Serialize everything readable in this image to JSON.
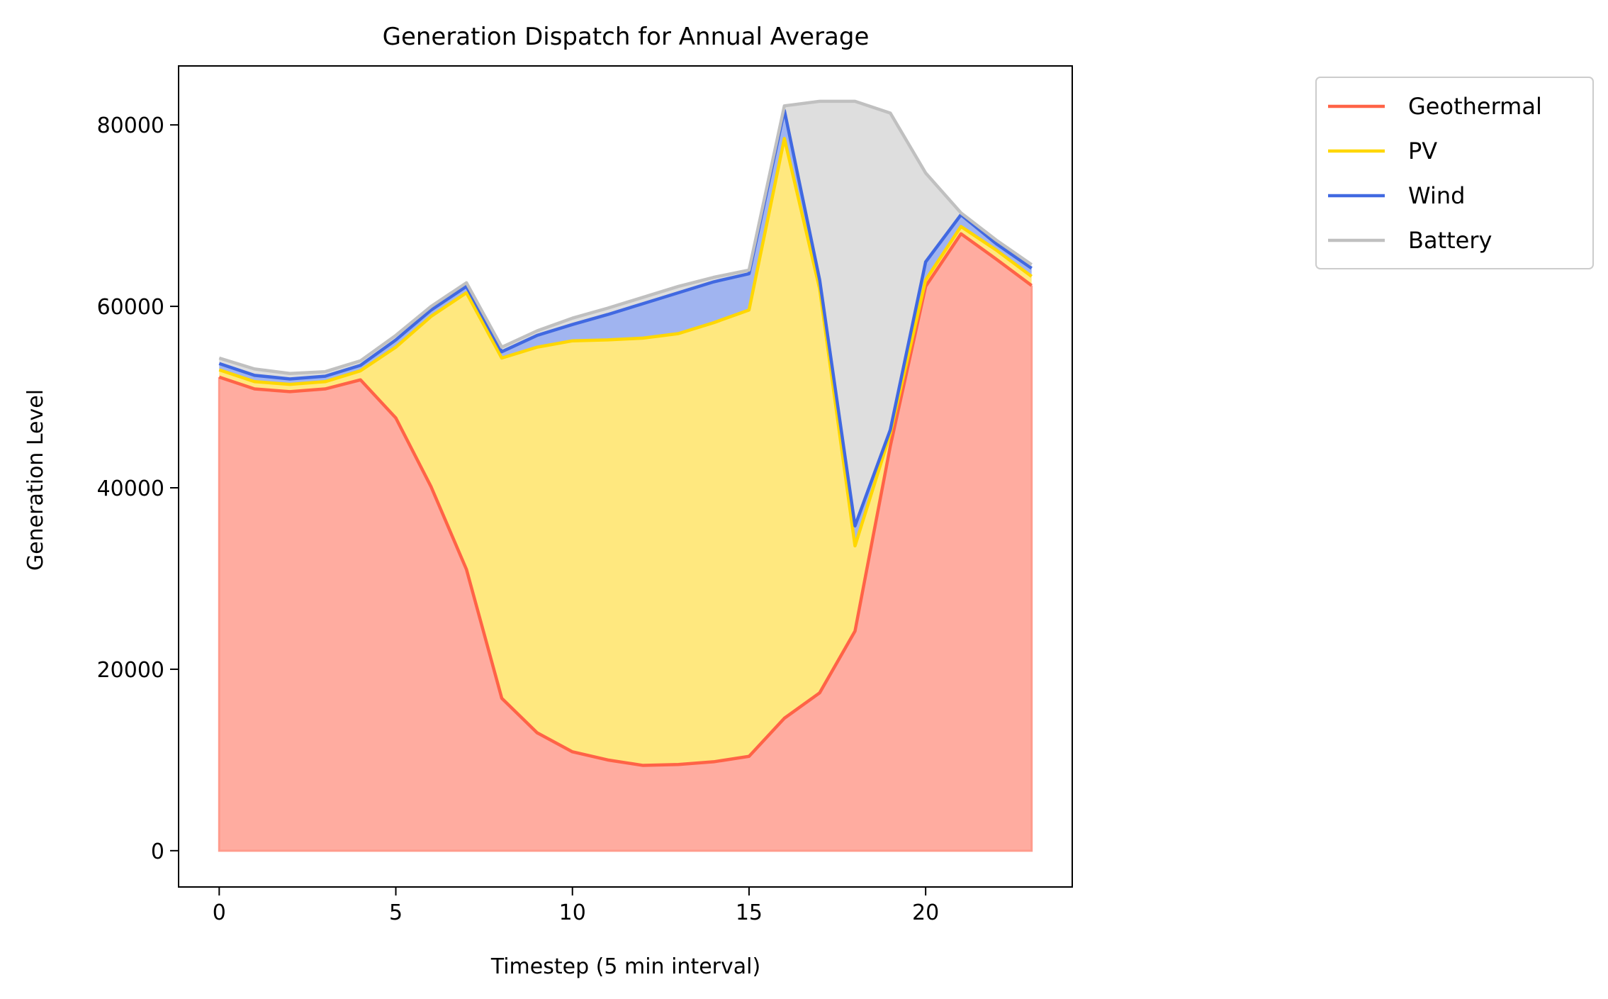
{
  "chart_data": {
    "type": "area",
    "title": "Generation Dispatch for Annual Average",
    "xlabel": "Timestep (5 min interval)",
    "ylabel": "Generation Level",
    "xlim": [
      -1.15,
      24.15
    ],
    "ylim": [
      -4000,
      86500
    ],
    "xticks": [
      0,
      5,
      10,
      15,
      20
    ],
    "yticks": [
      0,
      20000,
      40000,
      60000,
      80000
    ],
    "grid": false,
    "legend_position": "outside-right",
    "x": [
      0,
      1,
      2,
      3,
      4,
      5,
      6,
      7,
      8,
      9,
      10,
      11,
      12,
      13,
      14,
      15,
      16,
      17,
      18,
      19,
      20,
      21,
      22,
      23
    ],
    "series": [
      {
        "name": "Geothermal",
        "line_color": "#ff6347",
        "fill_color": "#ffaca0",
        "values": [
          52200,
          50900,
          50600,
          50900,
          51900,
          47700,
          40100,
          31000,
          16800,
          13000,
          10900,
          10000,
          9400,
          9500,
          9800,
          10400,
          14600,
          17400,
          24200,
          44600,
          62200,
          68000,
          65200,
          62300
        ]
      },
      {
        "name": "PV",
        "line_color": "#ffd700",
        "fill_color": "#ffe87f",
        "values": [
          53000,
          51700,
          51400,
          51700,
          52900,
          55500,
          58900,
          61500,
          54300,
          55500,
          56200,
          56300,
          56500,
          57000,
          58200,
          59600,
          78500,
          61900,
          33600,
          46000,
          62900,
          68800,
          66200,
          63300
        ]
      },
      {
        "name": "Wind",
        "line_color": "#4169e1",
        "fill_color": "#a0b4f0",
        "values": [
          53700,
          52400,
          52000,
          52300,
          53500,
          56300,
          59600,
          62200,
          55000,
          56800,
          58000,
          59100,
          60300,
          61500,
          62700,
          63600,
          81600,
          62900,
          35800,
          46400,
          64900,
          70100,
          66900,
          64200
        ]
      },
      {
        "name": "Battery",
        "line_color": "#c0c0c0",
        "fill_color": "#dedede",
        "values": [
          54300,
          53100,
          52600,
          52800,
          54000,
          56800,
          60000,
          62600,
          55500,
          57300,
          58700,
          59800,
          61000,
          62200,
          63200,
          64000,
          82100,
          82600,
          82600,
          81300,
          74700,
          70300,
          67300,
          64600
        ]
      }
    ]
  }
}
